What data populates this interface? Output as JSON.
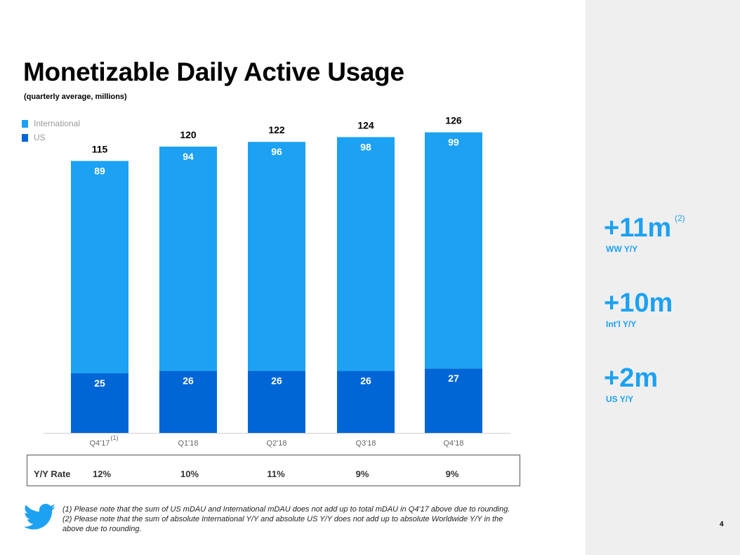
{
  "title": "Monetizable Daily Active Usage",
  "subtitle": "(quarterly average, millions)",
  "colors": {
    "international": "#1da1f2",
    "us": "#0066d6",
    "accent": "#1da1f2",
    "sidebar_bg": "#efefef"
  },
  "chart_data": {
    "type": "bar",
    "stacked": true,
    "categories": [
      "Q4'17",
      "Q1'18",
      "Q2'18",
      "Q3'18",
      "Q4'18"
    ],
    "category_footnote": "(1)",
    "series": [
      {
        "name": "US",
        "values": [
          25,
          26,
          26,
          26,
          27
        ]
      },
      {
        "name": "International",
        "values": [
          89,
          94,
          96,
          98,
          99
        ]
      }
    ],
    "totals": [
      115,
      120,
      122,
      124,
      126
    ],
    "legend": [
      "International",
      "US"
    ],
    "legend_position": "top-left",
    "ylim": [
      0,
      130
    ],
    "grid": false,
    "title": "Monetizable Daily Active Usage",
    "xlabel": "",
    "ylabel": ""
  },
  "yy": {
    "label": "Y/Y Rate",
    "values": [
      "12%",
      "10%",
      "11%",
      "9%",
      "9%"
    ]
  },
  "stats": [
    {
      "value": "+11m",
      "sup": "(2)",
      "label": "WW Y/Y"
    },
    {
      "value": "+10m",
      "sup": "",
      "label": "Int'l Y/Y"
    },
    {
      "value": "+2m",
      "sup": "",
      "label": "US Y/Y"
    }
  ],
  "footnotes": {
    "note1": "(1) Please note that the sum of US mDAU and International mDAU does not add up to total mDAU in Q4'17 above due to rounding.",
    "note2": "(2) Please note that the sum of absolute International Y/Y and absolute US Y/Y does not add up to absolute Worldwide Y/Y in the above due to rounding."
  },
  "page_number": "4",
  "logo_icon": "twitter-bird-icon"
}
